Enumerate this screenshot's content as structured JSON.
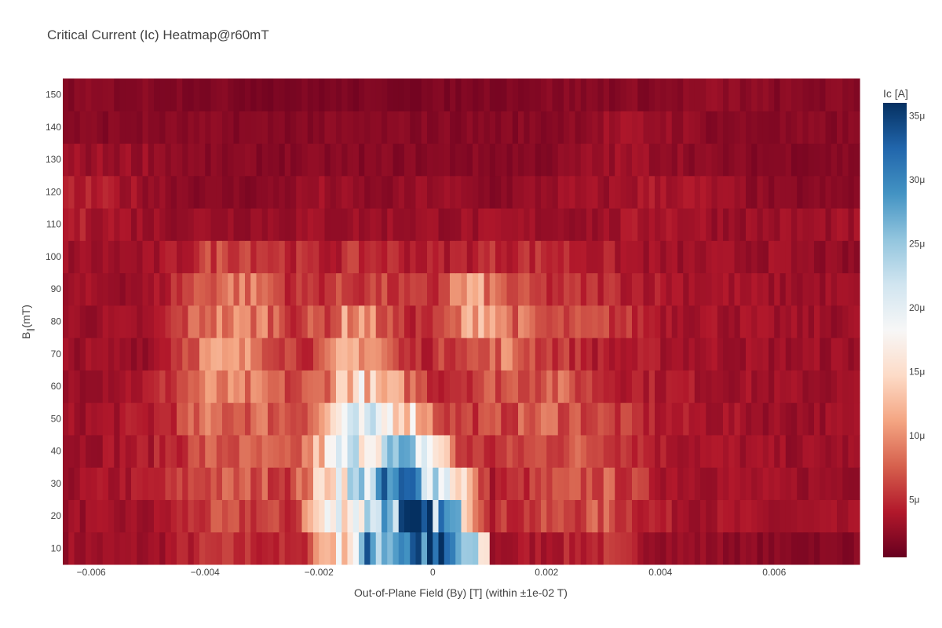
{
  "chart_data": {
    "type": "heatmap",
    "title": "Critical Current (Ic) Heatmap@r60mT",
    "xlabel": "Out-of-Plane Field (By) [T] (within ±1e-02 T)",
    "ylabel": "B∥(mT)",
    "ylabel_main": "B",
    "ylabel_sub": "∥",
    "ylabel_tail": "(mT)",
    "xlim": [
      -0.0065,
      0.0075
    ],
    "ylim": [
      5,
      155
    ],
    "x_ticks": [
      -0.006,
      -0.004,
      -0.002,
      0,
      0.002,
      0.004,
      0.006
    ],
    "x_tick_labels": [
      "−0.006",
      "−0.004",
      "−0.002",
      "0",
      "0.002",
      "0.004",
      "0.006"
    ],
    "y_ticks": [
      10,
      20,
      30,
      40,
      50,
      60,
      70,
      80,
      90,
      100,
      110,
      120,
      130,
      140,
      150
    ],
    "y_tick_labels": [
      "10",
      "20",
      "30",
      "40",
      "50",
      "60",
      "70",
      "80",
      "90",
      "100",
      "110",
      "120",
      "130",
      "140",
      "150"
    ],
    "y_values": [
      10,
      20,
      30,
      40,
      50,
      60,
      70,
      80,
      90,
      100,
      110,
      120,
      130,
      140,
      150
    ],
    "x_start": -0.0065,
    "x_step": 0.0001,
    "x_count": 140,
    "z_unit": "A",
    "colorbar": {
      "title": "Ic [A]",
      "range": [
        5e-07,
        3.6e-05
      ],
      "ticks": [
        5e-06,
        1e-05,
        1.5e-05,
        2e-05,
        2.5e-05,
        3e-05,
        3.5e-05
      ],
      "tick_labels": [
        "5μ",
        "10μ",
        "15μ",
        "20μ",
        "25μ",
        "30μ",
        "35μ"
      ],
      "colorscale": "RdBu",
      "colors": [
        "#67001f",
        "#b2182b",
        "#d6604d",
        "#f4a582",
        "#fddbc7",
        "#f7f7f7",
        "#d1e5f0",
        "#92c5de",
        "#4393c3",
        "#2166ac",
        "#053061"
      ]
    },
    "row_profiles_uA": [
      [
        [
          -0.0065,
          3
        ],
        [
          -0.005,
          3
        ],
        [
          -0.004,
          5
        ],
        [
          -0.003,
          5
        ],
        [
          -0.0024,
          4
        ],
        [
          -0.002,
          12
        ],
        [
          -0.0015,
          17
        ],
        [
          -0.0012,
          27
        ],
        [
          -0.0008,
          30
        ],
        [
          -0.0004,
          33
        ],
        [
          0,
          32
        ],
        [
          0.0004,
          27
        ],
        [
          0.0007,
          20
        ],
        [
          0.0009,
          14
        ],
        [
          0.001,
          3
        ],
        [
          0.002,
          4
        ],
        [
          0.003,
          5
        ],
        [
          0.004,
          3
        ],
        [
          0.006,
          2
        ],
        [
          0.0075,
          2
        ]
      ],
      [
        [
          -0.0065,
          3
        ],
        [
          -0.005,
          3
        ],
        [
          -0.004,
          6
        ],
        [
          -0.003,
          6
        ],
        [
          -0.0025,
          5
        ],
        [
          -0.0022,
          12
        ],
        [
          -0.0018,
          18
        ],
        [
          -0.0013,
          20
        ],
        [
          -0.001,
          26
        ],
        [
          -0.0006,
          30
        ],
        [
          -0.0002,
          30
        ],
        [
          0.0002,
          27
        ],
        [
          0.0005,
          20
        ],
        [
          0.0007,
          12
        ],
        [
          0.001,
          5
        ],
        [
          0.002,
          6
        ],
        [
          0.003,
          7
        ],
        [
          0.004,
          4
        ],
        [
          0.006,
          3
        ],
        [
          0.0075,
          3
        ]
      ],
      [
        [
          -0.0065,
          3
        ],
        [
          -0.005,
          4
        ],
        [
          -0.004,
          7
        ],
        [
          -0.003,
          7
        ],
        [
          -0.0025,
          6
        ],
        [
          -0.0021,
          12
        ],
        [
          -0.0018,
          18
        ],
        [
          -0.0014,
          22
        ],
        [
          -0.001,
          26
        ],
        [
          -0.0005,
          29
        ],
        [
          -0.0002,
          28
        ],
        [
          0.0002,
          20
        ],
        [
          0.0005,
          15
        ],
        [
          0.0007,
          8
        ],
        [
          0.001,
          4
        ],
        [
          0.002,
          6
        ],
        [
          0.003,
          7
        ],
        [
          0.004,
          4
        ],
        [
          0.006,
          3
        ],
        [
          0.0075,
          3
        ]
      ],
      [
        [
          -0.0065,
          3
        ],
        [
          -0.005,
          4
        ],
        [
          -0.004,
          7
        ],
        [
          -0.003,
          7
        ],
        [
          -0.0025,
          6
        ],
        [
          -0.002,
          13
        ],
        [
          -0.0017,
          18
        ],
        [
          -0.0014,
          20
        ],
        [
          -0.001,
          22
        ],
        [
          -0.0006,
          23
        ],
        [
          -0.0003,
          22
        ],
        [
          0,
          17
        ],
        [
          0.0002,
          12
        ],
        [
          0.0004,
          6
        ],
        [
          0.001,
          5
        ],
        [
          0.002,
          7
        ],
        [
          0.003,
          7
        ],
        [
          0.004,
          4
        ],
        [
          0.006,
          3
        ],
        [
          0.0075,
          3
        ]
      ],
      [
        [
          -0.0065,
          3
        ],
        [
          -0.005,
          4
        ],
        [
          -0.004,
          8
        ],
        [
          -0.003,
          8
        ],
        [
          -0.0025,
          7
        ],
        [
          -0.002,
          10
        ],
        [
          -0.0017,
          17
        ],
        [
          -0.0013,
          18
        ],
        [
          -0.001,
          18
        ],
        [
          -0.0006,
          17
        ],
        [
          -0.0003,
          14
        ],
        [
          0,
          8
        ],
        [
          0.0003,
          6
        ],
        [
          0.001,
          6
        ],
        [
          0.002,
          8
        ],
        [
          0.003,
          6
        ],
        [
          0.004,
          4
        ],
        [
          0.006,
          3
        ],
        [
          0.0075,
          3
        ]
      ],
      [
        [
          -0.0065,
          3
        ],
        [
          -0.005,
          4
        ],
        [
          -0.004,
          9
        ],
        [
          -0.003,
          8
        ],
        [
          -0.0025,
          6
        ],
        [
          -0.002,
          8
        ],
        [
          -0.0016,
          14
        ],
        [
          -0.0013,
          15
        ],
        [
          -0.001,
          11
        ],
        [
          -0.0007,
          10
        ],
        [
          -0.0004,
          8
        ],
        [
          0,
          5
        ],
        [
          0.001,
          7
        ],
        [
          0.002,
          8
        ],
        [
          0.003,
          5
        ],
        [
          0.004,
          4
        ],
        [
          0.006,
          3
        ],
        [
          0.0075,
          3
        ]
      ],
      [
        [
          -0.0065,
          3
        ],
        [
          -0.005,
          3
        ],
        [
          -0.004,
          10
        ],
        [
          -0.003,
          9
        ],
        [
          -0.0025,
          6
        ],
        [
          -0.002,
          6
        ],
        [
          -0.0016,
          11
        ],
        [
          -0.0013,
          12
        ],
        [
          -0.001,
          10
        ],
        [
          -0.0006,
          5
        ],
        [
          0,
          5
        ],
        [
          0.0005,
          8
        ],
        [
          0.0008,
          6
        ],
        [
          0.0012,
          9
        ],
        [
          0.002,
          6
        ],
        [
          0.003,
          4
        ],
        [
          0.006,
          3
        ],
        [
          0.0075,
          3
        ]
      ],
      [
        [
          -0.0065,
          3
        ],
        [
          -0.005,
          3
        ],
        [
          -0.004,
          9
        ],
        [
          -0.003,
          9
        ],
        [
          -0.0025,
          6
        ],
        [
          -0.0018,
          7
        ],
        [
          -0.0016,
          10
        ],
        [
          -0.0013,
          11
        ],
        [
          -0.001,
          8
        ],
        [
          -0.0006,
          5
        ],
        [
          0,
          5
        ],
        [
          0.0004,
          8
        ],
        [
          0.0007,
          13
        ],
        [
          0.0009,
          14
        ],
        [
          0.0012,
          9
        ],
        [
          0.002,
          6
        ],
        [
          0.003,
          6
        ],
        [
          0.004,
          4
        ],
        [
          0.006,
          3
        ],
        [
          0.0075,
          3
        ]
      ],
      [
        [
          -0.0065,
          3
        ],
        [
          -0.005,
          3
        ],
        [
          -0.004,
          8
        ],
        [
          -0.0035,
          9
        ],
        [
          -0.003,
          8
        ],
        [
          -0.0025,
          5
        ],
        [
          -0.0015,
          6
        ],
        [
          -0.001,
          6
        ],
        [
          -0.0005,
          5
        ],
        [
          0,
          5
        ],
        [
          0.0003,
          9
        ],
        [
          0.0007,
          11
        ],
        [
          0.001,
          8
        ],
        [
          0.0015,
          6
        ],
        [
          0.002,
          5
        ],
        [
          0.003,
          5
        ],
        [
          0.004,
          4
        ],
        [
          0.006,
          3
        ],
        [
          0.0075,
          3
        ]
      ],
      [
        [
          -0.0065,
          3
        ],
        [
          -0.005,
          3
        ],
        [
          -0.0045,
          4
        ],
        [
          -0.004,
          6
        ],
        [
          -0.0035,
          7
        ],
        [
          -0.003,
          6
        ],
        [
          -0.002,
          4
        ],
        [
          -0.0015,
          5
        ],
        [
          -0.001,
          5
        ],
        [
          0,
          4
        ],
        [
          0.001,
          5
        ],
        [
          0.002,
          5
        ],
        [
          0.003,
          4
        ],
        [
          0.004,
          3
        ],
        [
          0.006,
          3
        ],
        [
          0.0075,
          2
        ]
      ],
      [
        [
          -0.0065,
          4
        ],
        [
          -0.006,
          4
        ],
        [
          -0.005,
          3
        ],
        [
          -0.004,
          3
        ],
        [
          -0.003,
          3
        ],
        [
          -0.002,
          3
        ],
        [
          -0.001,
          3
        ],
        [
          0,
          3
        ],
        [
          0.001,
          3
        ],
        [
          0.002,
          3
        ],
        [
          0.003,
          3
        ],
        [
          0.004,
          4
        ],
        [
          0.005,
          3
        ],
        [
          0.006,
          3
        ],
        [
          0.0075,
          3
        ]
      ],
      [
        [
          -0.0065,
          4
        ],
        [
          -0.006,
          4
        ],
        [
          -0.005,
          3
        ],
        [
          -0.004,
          2
        ],
        [
          -0.003,
          2
        ],
        [
          -0.002,
          3
        ],
        [
          -0.001,
          2
        ],
        [
          0,
          3
        ],
        [
          0.001,
          2
        ],
        [
          0.002,
          3
        ],
        [
          0.003,
          3
        ],
        [
          0.004,
          4
        ],
        [
          0.005,
          3
        ],
        [
          0.006,
          2
        ],
        [
          0.0075,
          2
        ]
      ],
      [
        [
          -0.0065,
          3
        ],
        [
          -0.006,
          3
        ],
        [
          -0.005,
          3
        ],
        [
          -0.004,
          2
        ],
        [
          -0.003,
          2
        ],
        [
          -0.002,
          2
        ],
        [
          -0.001,
          2
        ],
        [
          0,
          2
        ],
        [
          0.001,
          2
        ],
        [
          0.002,
          2
        ],
        [
          0.003,
          3
        ],
        [
          0.004,
          3
        ],
        [
          0.005,
          2
        ],
        [
          0.006,
          2
        ],
        [
          0.0075,
          2
        ]
      ],
      [
        [
          -0.0065,
          2
        ],
        [
          -0.005,
          2
        ],
        [
          -0.004,
          2
        ],
        [
          -0.002,
          2
        ],
        [
          0,
          2
        ],
        [
          0.002,
          2
        ],
        [
          0.003,
          3
        ],
        [
          0.004,
          3
        ],
        [
          0.005,
          2
        ],
        [
          0.006,
          2
        ],
        [
          0.0075,
          2
        ]
      ],
      [
        [
          -0.0065,
          2
        ],
        [
          -0.005,
          2
        ],
        [
          -0.003,
          1.5
        ],
        [
          -0.002,
          1.5
        ],
        [
          0,
          1.5
        ],
        [
          0.002,
          2
        ],
        [
          0.004,
          2
        ],
        [
          0.005,
          2.5
        ],
        [
          0.006,
          2
        ],
        [
          0.0075,
          2
        ]
      ]
    ]
  }
}
